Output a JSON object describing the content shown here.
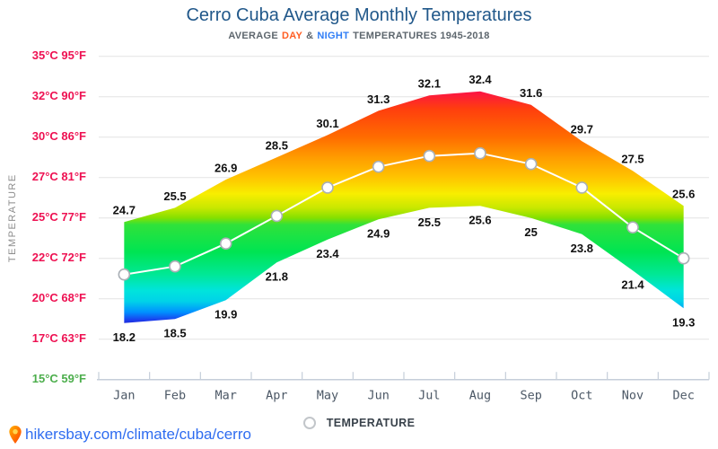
{
  "header": {
    "title": "Cerro Cuba Average Monthly Temperatures",
    "subtitle_prefix": "AVERAGE",
    "subtitle_day": "DAY",
    "subtitle_amp": "&",
    "subtitle_night": "NIGHT",
    "subtitle_suffix": "TEMPERATURES 1945-2018"
  },
  "legend": {
    "label": "TEMPERATURE"
  },
  "footer": {
    "url": "hikersbay.com/climate/cuba/cerro"
  },
  "colors": {
    "title": "#21588a",
    "subtitle": "#5d666d",
    "day": "#ff5d22",
    "night": "#2f7df6",
    "ytick_pink": "#ee1152",
    "ytick_green": "#4cae4c",
    "month": "#4c5866",
    "grid": "#e3e3e3",
    "axis": "#c5ced9",
    "link": "#2e6cf0",
    "line": "#ffffff",
    "marker_stroke": "#aab0b6",
    "value_label": "#101010"
  },
  "chart_data": {
    "type": "area",
    "title": "Cerro Cuba Average Monthly Temperatures",
    "subtitle": "AVERAGE DAY & NIGHT TEMPERATURES 1945-2018",
    "ylabel": "TEMPERATURE",
    "xlabel": "",
    "categories": [
      "Jan",
      "Feb",
      "Mar",
      "Apr",
      "May",
      "Jun",
      "Jul",
      "Aug",
      "Sep",
      "Oct",
      "Nov",
      "Dec"
    ],
    "series": [
      {
        "name": "DAY",
        "values": [
          24.7,
          25.5,
          26.9,
          28.5,
          30.1,
          31.3,
          32.1,
          32.4,
          31.6,
          29.7,
          27.5,
          25.6
        ]
      },
      {
        "name": "NIGHT",
        "values": [
          18.2,
          18.5,
          19.9,
          21.8,
          23.4,
          24.9,
          25.5,
          25.6,
          25,
          23.8,
          21.4,
          19.3
        ]
      },
      {
        "name": "TEMPERATURE",
        "note": "white middle line with markers; values unlabeled on chart, estimated from pixels",
        "values": [
          21.2,
          21.6,
          23.1,
          25.1,
          26.5,
          27.8,
          28.6,
          28.8,
          28.0,
          26.5,
          24.3,
          22.0
        ]
      }
    ],
    "y_axis": {
      "tick_labels": [
        "35°C 95°F",
        "32°C 90°F",
        "30°C 86°F",
        "27°C 81°F",
        "25°C 77°F",
        "22°C 72°F",
        "20°C 68°F",
        "17°C 63°F",
        "15°C 59°F"
      ],
      "tick_temps": [
        35,
        32,
        30,
        27,
        25,
        22,
        20,
        17,
        15
      ]
    },
    "ylim": [
      15,
      35
    ],
    "grid": true,
    "legend_position": "bottom-center",
    "band_gradient_stops": [
      {
        "temp": 35.0,
        "color": "#ff0a45"
      },
      {
        "temp": 32.4,
        "color": "#fb1345"
      },
      {
        "temp": 31.4,
        "color": "#ff3e0e"
      },
      {
        "temp": 30.0,
        "color": "#ff6c00"
      },
      {
        "temp": 28.5,
        "color": "#ff9c00"
      },
      {
        "temp": 27.0,
        "color": "#ffc400"
      },
      {
        "temp": 26.2,
        "color": "#f8ee00"
      },
      {
        "temp": 25.5,
        "color": "#c8e800"
      },
      {
        "temp": 25.0,
        "color": "#84e000"
      },
      {
        "temp": 24.5,
        "color": "#30e23a"
      },
      {
        "temp": 22.5,
        "color": "#00e452"
      },
      {
        "temp": 21.2,
        "color": "#00e896"
      },
      {
        "temp": 20.4,
        "color": "#00e4dc"
      },
      {
        "temp": 19.8,
        "color": "#00d2e8"
      },
      {
        "temp": 19.0,
        "color": "#0090ff"
      },
      {
        "temp": 18.4,
        "color": "#1c3cec"
      },
      {
        "temp": 18.0,
        "color": "#2121cc"
      },
      {
        "temp": 15.0,
        "color": "#2121cc"
      }
    ]
  }
}
